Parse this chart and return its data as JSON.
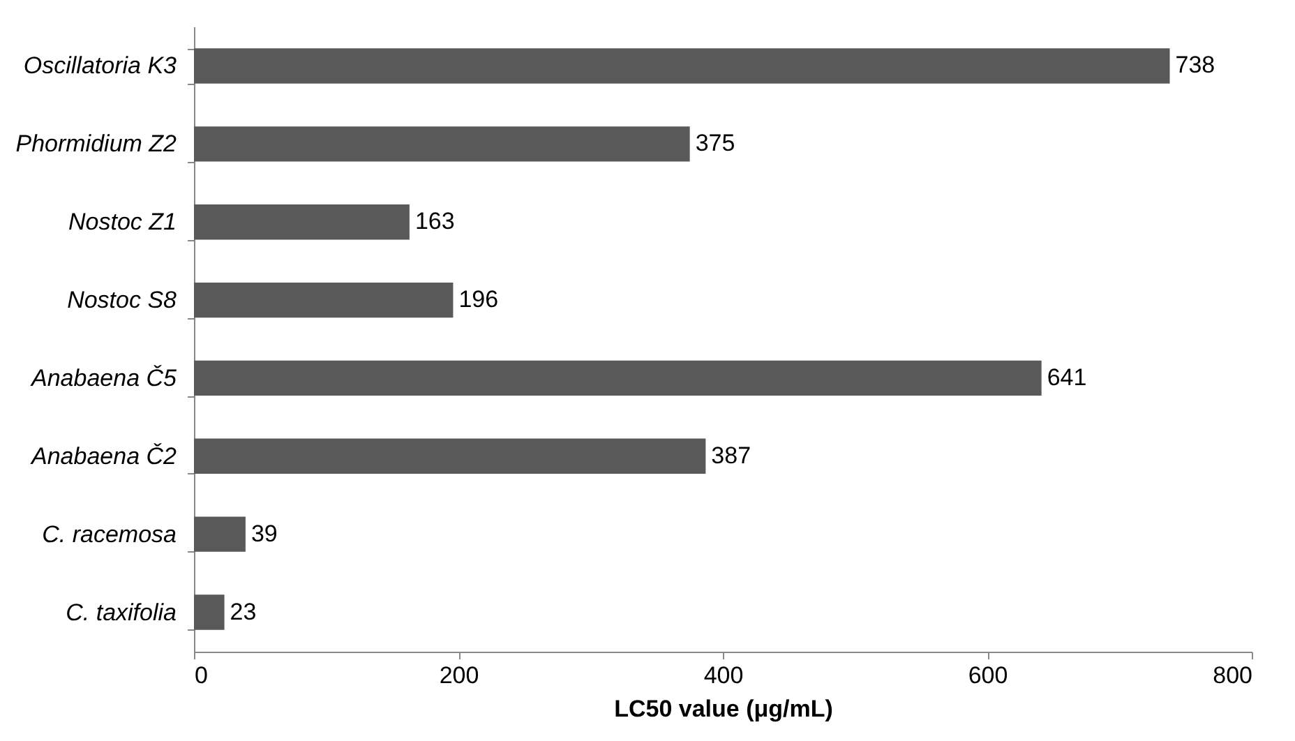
{
  "chart_data": {
    "type": "bar",
    "orientation": "horizontal",
    "xlabel": "LC50 value (μg/mL)",
    "categories": [
      "Oscillatoria K3",
      "Phormidium Z2",
      "Nostoc Z1",
      "Nostoc S8",
      "Anabaena Č5",
      "Anabaena Č2",
      "C. racemosa",
      "C. taxifolia"
    ],
    "values": [
      738,
      375,
      163,
      196,
      641,
      387,
      39,
      23
    ],
    "color": "#595959",
    "xlim": [
      0,
      800
    ],
    "xticks": [
      0,
      200,
      400,
      600,
      800
    ],
    "grid": false,
    "data_labels": true
  }
}
